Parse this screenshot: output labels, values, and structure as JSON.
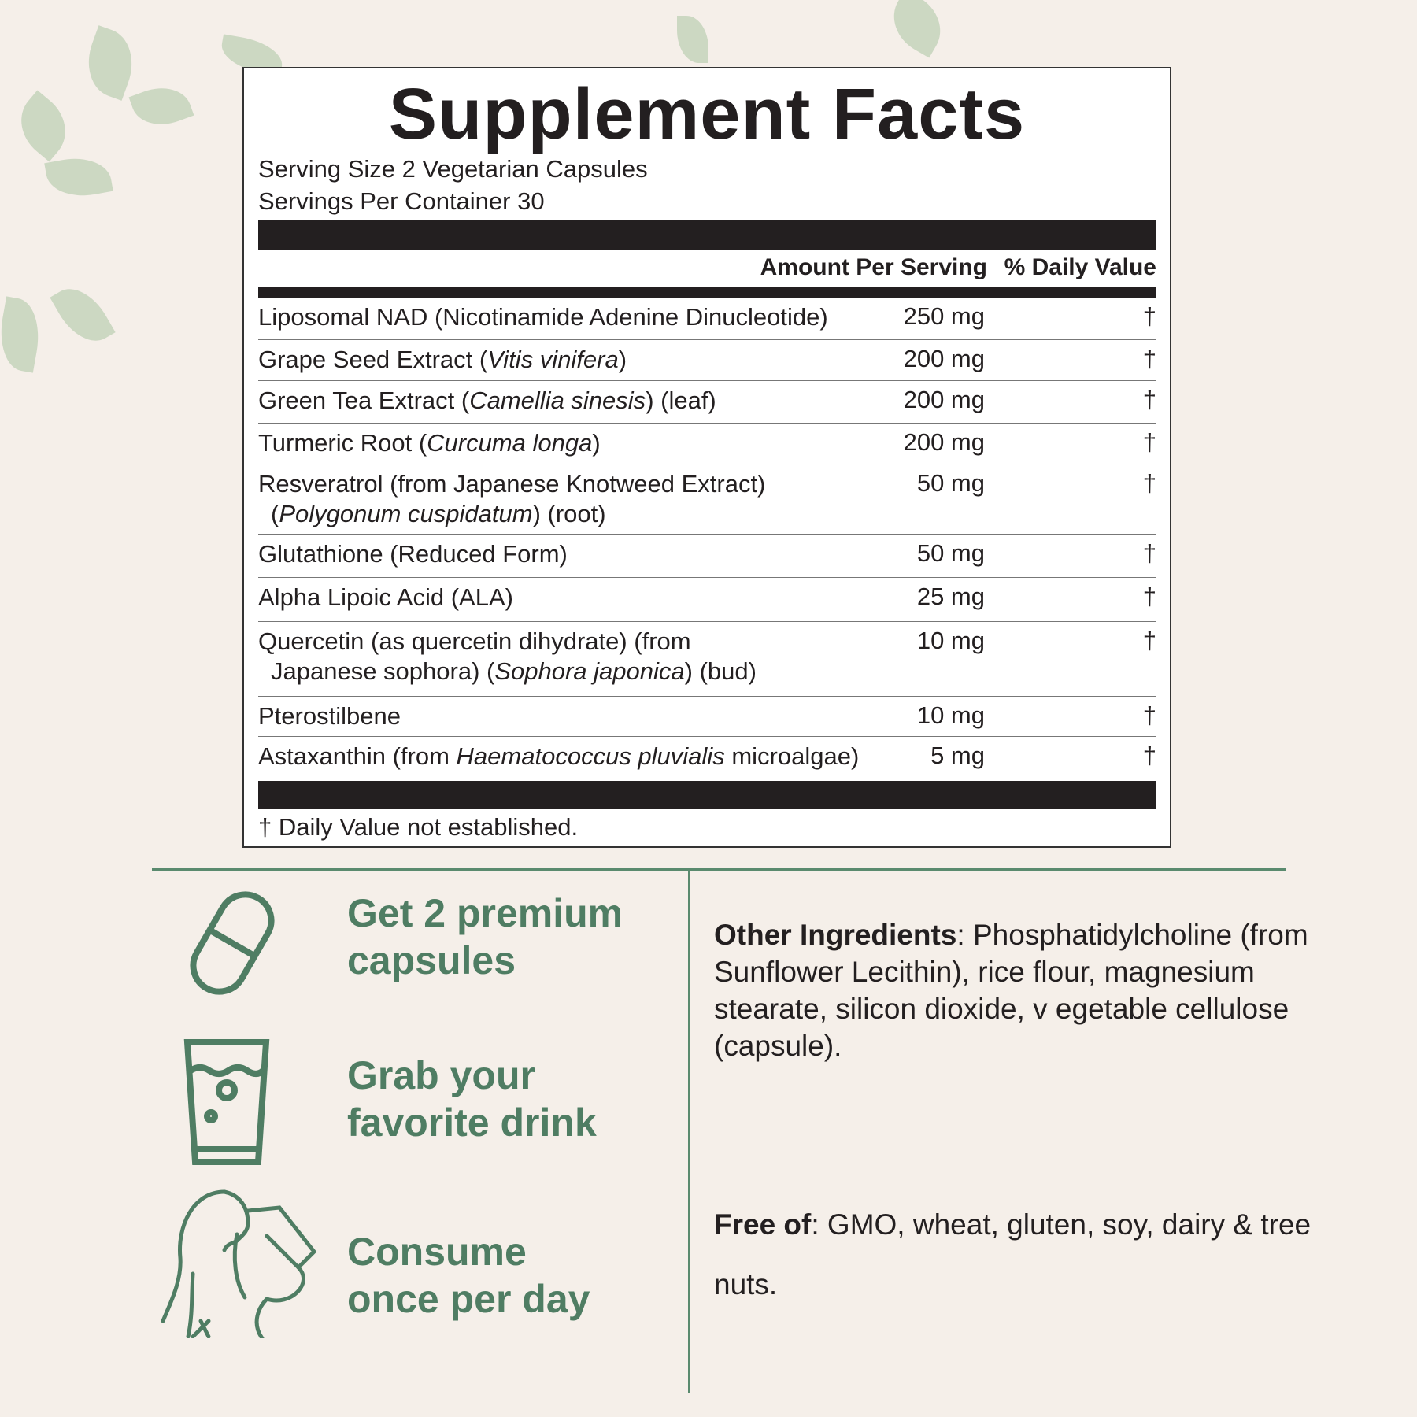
{
  "facts": {
    "title": "Supplement Facts",
    "serving_size": "Serving Size 2 Vegetarian Capsules",
    "servings_per_container": "Servings Per Container 30",
    "col_amount": "Amount Per Serving",
    "col_dv": "% Daily Value",
    "rows": [
      {
        "name": "Liposomal NAD (Nicotinamide Adenine Dinucleotide)",
        "amount": "250 mg",
        "dv": "†"
      },
      {
        "pre": "Grape Seed Extract (",
        "it": "Vitis vinifera",
        "post": ")",
        "amount": "200 mg",
        "dv": "†"
      },
      {
        "pre": "Green Tea Extract (",
        "it": "Camellia sinesis",
        "post": ") (leaf)",
        "amount": "200 mg",
        "dv": "†"
      },
      {
        "pre": "Turmeric Root (",
        "it": "Curcuma longa",
        "post": ")",
        "amount": "200 mg",
        "dv": "†"
      },
      {
        "name": "Resveratrol (from Japanese Knotweed Extract)",
        "pre2": "(",
        "it2": "Polygonum cuspidatum",
        "post2": ") (root)",
        "amount": "50 mg",
        "dv": "†"
      },
      {
        "name": "Glutathione (Reduced Form)",
        "amount": "50 mg",
        "dv": "†"
      },
      {
        "name": "Alpha Lipoic Acid (ALA)",
        "amount": "25 mg",
        "dv": "†"
      },
      {
        "name": "Quercetin (as quercetin dihydrate) (from",
        "pre2": "Japanese sophora) (",
        "it2": "Sophora japonica",
        "post2": ") (bud)",
        "amount": "10 mg",
        "dv": "†"
      },
      {
        "name": "Pterostilbene",
        "amount": "10 mg",
        "dv": "†"
      },
      {
        "pre": "Astaxanthin (from ",
        "it": "Haematococcus pluvialis",
        "post": " microalgae)",
        "amount": "5 mg",
        "dv": "†"
      }
    ],
    "footnote": "† Daily Value not established."
  },
  "steps": [
    {
      "l1": "Get 2 premium",
      "l2": "capsules",
      "icon": "capsule-icon"
    },
    {
      "l1": "Grab your",
      "l2": "favorite drink",
      "icon": "glass-icon"
    },
    {
      "l1": "Consume",
      "l2": "once per day",
      "icon": "woman-drinking-icon"
    }
  ],
  "other": {
    "label": "Other Ingredients",
    "text": ": Phosphatidylcholine (from Sunflower Lecithin), rice flour, magnesium stearate, silicon dioxide, v egetable cellulose (capsule)."
  },
  "free": {
    "label": "Free of",
    "text": ": GMO, wheat, gluten, soy, dairy & tree nuts."
  },
  "colors": {
    "accent": "#4f7d63",
    "background": "#f5efe9"
  }
}
